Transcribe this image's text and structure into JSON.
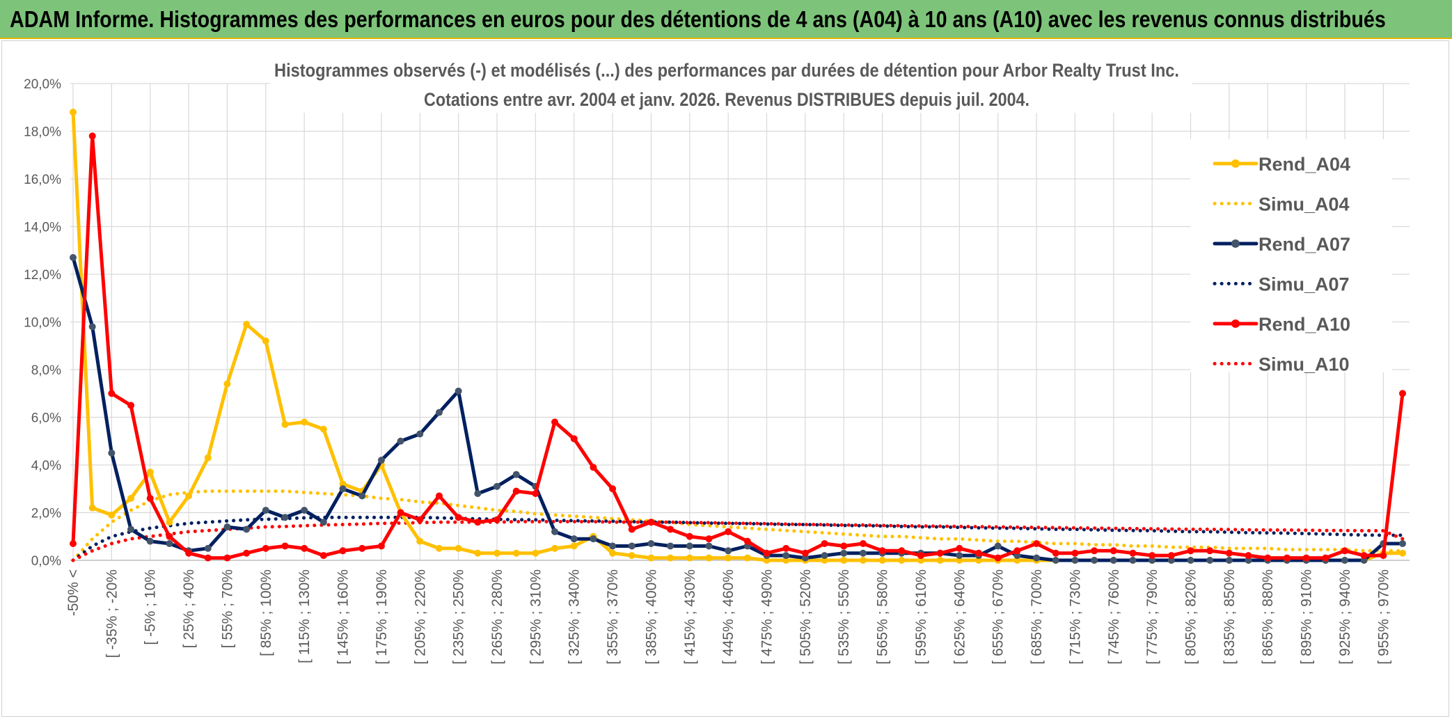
{
  "banner": {
    "title": "ADAM Informe. Histogrammes des performances en euros pour des détentions de 4 ans (A04) à 10 ans (A10) avec les revenus connus distribués",
    "background": "#7dc47a"
  },
  "chart_data": {
    "type": "line",
    "title": "Histogrammes observés (-) et modélisés (...) des performances par durées de détention pour Arbor Realty Trust Inc.",
    "subtitle": "Cotations entre avr. 2004 et janv. 2026. Revenus DISTRIBUES depuis juil. 2004.",
    "xlabel": "",
    "ylabel": "",
    "ylim": [
      0,
      20
    ],
    "yticks": [
      "0,0%",
      "2,0%",
      "4,0%",
      "6,0%",
      "8,0%",
      "10,0%",
      "12,0%",
      "14,0%",
      "16,0%",
      "18,0%",
      "20,0%"
    ],
    "x_tick_labels": [
      "-50% <",
      "[ -35% ; -20%",
      "[ -5% ; 10%",
      "[ 25% ; 40%",
      "[ 55% ; 70%",
      "[ 85% ; 100%",
      "[ 115% ; 130%",
      "[ 145% ; 160%",
      "[ 175% ; 190%",
      "[ 205% ; 220%",
      "[ 235% ; 250%",
      "[ 265% ; 280%",
      "[ 295% ; 310%",
      "[ 325% ; 340%",
      "[ 355% ; 370%",
      "[ 385% ; 400%",
      "[ 415% ; 430%",
      "[ 445% ; 460%",
      "[ 475% ; 490%",
      "[ 505% ; 520%",
      "[ 535% ; 550%",
      "[ 565% ; 580%",
      "[ 595% ; 610%",
      "[ 625% ; 640%",
      "[ 655% ; 670%",
      "[ 685% ; 700%",
      "[ 715% ; 730%",
      "[ 745% ; 760%",
      "[ 775% ; 790%",
      "[ 805% ; 820%",
      "[ 835% ; 850%",
      "[ 865% ; 880%",
      "[ 895% ; 910%",
      "[ 925% ; 940%",
      "[ 955% ; 970%"
    ],
    "n_points": 70,
    "gridlines": true,
    "legend_position": "right",
    "series": [
      {
        "name": "Rend_A04",
        "color": "#ffc000",
        "style": "solid",
        "markers": true,
        "values": [
          18.8,
          2.2,
          1.9,
          2.6,
          3.7,
          1.6,
          2.7,
          4.3,
          7.4,
          9.9,
          9.2,
          5.7,
          5.8,
          5.5,
          3.2,
          2.9,
          4.0,
          2.0,
          0.8,
          0.5,
          0.5,
          0.3,
          0.3,
          0.3,
          0.3,
          0.5,
          0.6,
          1.0,
          0.3,
          0.2,
          0.1,
          0.1,
          0.1,
          0.1,
          0.1,
          0.1,
          0.0,
          0.0,
          0.0,
          0.0,
          0.0,
          0.0,
          0.0,
          0.0,
          0.0,
          0.0,
          0.0,
          0.0,
          0.0,
          0.0,
          0.0,
          0.0,
          0.0,
          0.0,
          0.0,
          0.0,
          0.0,
          0.0,
          0.0,
          0.0,
          0.0,
          0.0,
          0.0,
          0.0,
          0.0,
          0.0,
          0.0,
          0.0,
          0.3,
          0.3
        ]
      },
      {
        "name": "Simu_A04",
        "color": "#ffc000",
        "style": "dotted",
        "markers": false,
        "values": [
          0.0,
          0.9,
          1.6,
          2.1,
          2.5,
          2.75,
          2.85,
          2.9,
          2.9,
          2.9,
          2.9,
          2.9,
          2.85,
          2.8,
          2.75,
          2.7,
          2.6,
          2.55,
          2.45,
          2.4,
          2.3,
          2.2,
          2.1,
          2.05,
          1.95,
          1.9,
          1.85,
          1.8,
          1.75,
          1.7,
          1.65,
          1.6,
          1.5,
          1.45,
          1.4,
          1.35,
          1.3,
          1.25,
          1.2,
          1.15,
          1.1,
          1.05,
          1.0,
          1.0,
          0.95,
          0.9,
          0.9,
          0.85,
          0.8,
          0.8,
          0.75,
          0.7,
          0.7,
          0.65,
          0.65,
          0.6,
          0.6,
          0.55,
          0.55,
          0.55,
          0.5,
          0.5,
          0.5,
          0.45,
          0.45,
          0.45,
          0.45,
          0.4,
          0.4,
          0.4
        ]
      },
      {
        "name": "Rend_A07",
        "color": "#002060",
        "style": "solid",
        "markers": true,
        "values": [
          12.7,
          9.8,
          4.5,
          1.3,
          0.8,
          0.7,
          0.4,
          0.5,
          1.4,
          1.3,
          2.1,
          1.8,
          2.1,
          1.6,
          3.0,
          2.7,
          4.2,
          5.0,
          5.3,
          6.2,
          7.1,
          2.8,
          3.1,
          3.6,
          3.1,
          1.2,
          0.9,
          0.9,
          0.6,
          0.6,
          0.7,
          0.6,
          0.6,
          0.6,
          0.4,
          0.6,
          0.2,
          0.2,
          0.1,
          0.2,
          0.3,
          0.3,
          0.3,
          0.3,
          0.3,
          0.3,
          0.2,
          0.2,
          0.6,
          0.2,
          0.1,
          0.0,
          0.0,
          0.0,
          0.0,
          0.0,
          0.0,
          0.0,
          0.0,
          0.0,
          0.0,
          0.0,
          0.0,
          0.0,
          0.0,
          0.0,
          0.0,
          0.0,
          0.7,
          0.7
        ]
      },
      {
        "name": "Simu_A07",
        "color": "#002060",
        "style": "dotted",
        "markers": false,
        "values": [
          0.0,
          0.6,
          1.0,
          1.2,
          1.35,
          1.45,
          1.55,
          1.6,
          1.65,
          1.7,
          1.72,
          1.75,
          1.78,
          1.8,
          1.8,
          1.8,
          1.8,
          1.8,
          1.8,
          1.78,
          1.76,
          1.74,
          1.72,
          1.7,
          1.7,
          1.68,
          1.66,
          1.65,
          1.64,
          1.62,
          1.6,
          1.6,
          1.58,
          1.56,
          1.55,
          1.54,
          1.52,
          1.5,
          1.5,
          1.48,
          1.46,
          1.45,
          1.44,
          1.42,
          1.4,
          1.4,
          1.38,
          1.36,
          1.35,
          1.34,
          1.32,
          1.3,
          1.3,
          1.28,
          1.26,
          1.25,
          1.24,
          1.22,
          1.2,
          1.2,
          1.18,
          1.16,
          1.15,
          1.14,
          1.12,
          1.1,
          1.08,
          1.06,
          1.05,
          1.05
        ]
      },
      {
        "name": "Rend_A10",
        "color": "#ff0000",
        "style": "solid",
        "markers": true,
        "values": [
          0.7,
          17.8,
          7.0,
          6.5,
          2.6,
          1.0,
          0.3,
          0.1,
          0.1,
          0.3,
          0.5,
          0.6,
          0.5,
          0.2,
          0.4,
          0.5,
          0.6,
          2.0,
          1.7,
          2.7,
          1.8,
          1.6,
          1.7,
          2.9,
          2.8,
          5.8,
          5.1,
          3.9,
          3.0,
          1.3,
          1.6,
          1.3,
          1.0,
          0.9,
          1.2,
          0.8,
          0.3,
          0.5,
          0.3,
          0.7,
          0.6,
          0.7,
          0.4,
          0.4,
          0.2,
          0.3,
          0.5,
          0.3,
          0.1,
          0.4,
          0.7,
          0.3,
          0.3,
          0.4,
          0.4,
          0.3,
          0.2,
          0.2,
          0.4,
          0.4,
          0.3,
          0.2,
          0.1,
          0.1,
          0.1,
          0.1,
          0.4,
          0.2,
          0.2,
          7.0
        ]
      },
      {
        "name": "Simu_A10",
        "color": "#ff0000",
        "style": "dotted",
        "markers": false,
        "values": [
          0.0,
          0.4,
          0.7,
          0.9,
          1.0,
          1.1,
          1.2,
          1.25,
          1.3,
          1.35,
          1.4,
          1.42,
          1.45,
          1.48,
          1.5,
          1.52,
          1.55,
          1.56,
          1.58,
          1.6,
          1.6,
          1.6,
          1.6,
          1.62,
          1.62,
          1.62,
          1.62,
          1.62,
          1.6,
          1.6,
          1.6,
          1.6,
          1.58,
          1.58,
          1.56,
          1.55,
          1.54,
          1.52,
          1.5,
          1.5,
          1.48,
          1.48,
          1.46,
          1.45,
          1.44,
          1.43,
          1.42,
          1.41,
          1.4,
          1.39,
          1.38,
          1.37,
          1.36,
          1.35,
          1.34,
          1.33,
          1.32,
          1.31,
          1.3,
          1.3,
          1.29,
          1.28,
          1.27,
          1.27,
          1.26,
          1.25,
          1.25,
          1.24,
          1.24,
          0.9
        ]
      }
    ]
  }
}
